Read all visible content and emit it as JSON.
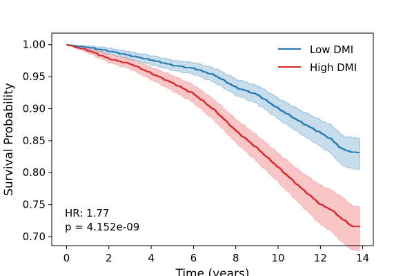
{
  "chart_data": {
    "type": "line",
    "xlabel": "Time (years)",
    "ylabel": "Survival Probability",
    "xlim": [
      -0.7,
      14.5
    ],
    "ylim": [
      0.686,
      1.018
    ],
    "xticks": [
      0,
      2,
      4,
      6,
      8,
      10,
      12,
      14
    ],
    "yticks": [
      0.7,
      0.75,
      0.8,
      0.85,
      0.9,
      0.95,
      1.0
    ],
    "legend_position": "top-right",
    "grid": false,
    "annotations": [
      "HR: 1.77",
      "p = 4.152e-09"
    ],
    "series": [
      {
        "name": "Low DMI",
        "color": "#1f77b4",
        "band_color": "#1f77b4",
        "x": [
          0,
          1,
          2,
          3,
          4,
          5,
          6,
          7,
          8,
          9,
          10,
          11,
          12,
          12.5,
          13,
          13.5,
          13.9
        ],
        "y": [
          1.0,
          0.996,
          0.99,
          0.983,
          0.976,
          0.968,
          0.963,
          0.952,
          0.933,
          0.922,
          0.9,
          0.88,
          0.862,
          0.852,
          0.837,
          0.832,
          0.832
        ],
        "lower": [
          1.0,
          0.993,
          0.985,
          0.977,
          0.969,
          0.96,
          0.954,
          0.941,
          0.921,
          0.908,
          0.884,
          0.862,
          0.841,
          0.83,
          0.812,
          0.806,
          0.806
        ],
        "upper": [
          1.0,
          0.999,
          0.995,
          0.989,
          0.983,
          0.976,
          0.972,
          0.963,
          0.946,
          0.936,
          0.916,
          0.898,
          0.882,
          0.874,
          0.858,
          0.855,
          0.855
        ]
      },
      {
        "name": "High DMI",
        "color": "#d62728",
        "band_color": "#f08080",
        "x": [
          0,
          1,
          2,
          3,
          4,
          5,
          6,
          7,
          8,
          9,
          10,
          11,
          12,
          12.5,
          13,
          13.5,
          13.9
        ],
        "y": [
          1.0,
          0.991,
          0.978,
          0.97,
          0.955,
          0.94,
          0.923,
          0.897,
          0.865,
          0.838,
          0.808,
          0.778,
          0.75,
          0.742,
          0.728,
          0.716,
          0.716
        ],
        "lower": [
          1.0,
          0.987,
          0.972,
          0.962,
          0.945,
          0.928,
          0.909,
          0.881,
          0.847,
          0.817,
          0.785,
          0.752,
          0.719,
          0.709,
          0.692,
          0.679,
          0.679
        ],
        "upper": [
          1.0,
          0.996,
          0.985,
          0.978,
          0.965,
          0.952,
          0.937,
          0.913,
          0.883,
          0.858,
          0.83,
          0.803,
          0.78,
          0.773,
          0.762,
          0.748,
          0.748
        ]
      }
    ]
  }
}
